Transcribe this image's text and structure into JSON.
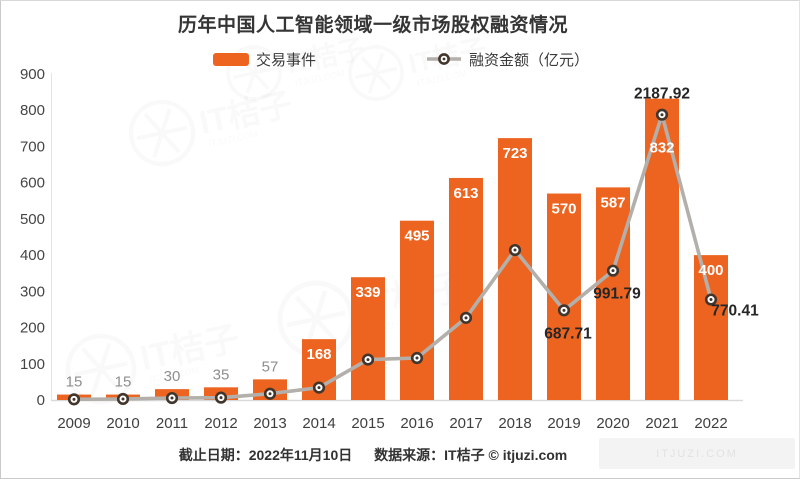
{
  "title": "历年中国人工智能领域一级市场股权融资情况",
  "legend": [
    {
      "label": "交易事件",
      "type": "bar"
    },
    {
      "label": "融资金额（亿元）",
      "type": "line"
    }
  ],
  "footer": {
    "date_label": "截止日期：2022年11月10日",
    "source_label": "数据来源：IT桔子 © itjuzi.com"
  },
  "watermark": {
    "brand": "IT桔子",
    "domain": "ITJUZI.COM"
  },
  "colors": {
    "bar": "#ec6420",
    "bar_label_inside": "#ffffff",
    "bar_label_outside": "#8e8e8e",
    "line": "#b3afaa",
    "marker_ring": "#42352c",
    "marker_fill": "#ffffff",
    "axis_line": "#d9d9d9",
    "tick_text": "#454545",
    "annotation_text": "#262626",
    "watermark_gray": "#9a9a9a"
  },
  "chart_data": {
    "type": "bar",
    "title": "历年中国人工智能领域一级市场股权融资情况",
    "categories": [
      "2009",
      "2010",
      "2011",
      "2012",
      "2013",
      "2014",
      "2015",
      "2016",
      "2017",
      "2018",
      "2019",
      "2020",
      "2021",
      "2022"
    ],
    "series": [
      {
        "name": "交易事件",
        "kind": "bar",
        "axis": "left",
        "values": [
          15,
          15,
          30,
          35,
          57,
          168,
          339,
          495,
          613,
          723,
          570,
          587,
          832,
          400
        ]
      },
      {
        "name": "融资金额（亿元）",
        "kind": "line",
        "axis": "right",
        "values": [
          5,
          8,
          15,
          18,
          48,
          95,
          310,
          322,
          630,
          1150,
          687.71,
          991.79,
          2187.92,
          770.41
        ]
      }
    ],
    "annotations": [
      {
        "category": "2019",
        "text": "687.71",
        "position": "below"
      },
      {
        "category": "2020",
        "text": "991.79",
        "position": "below"
      },
      {
        "category": "2021",
        "text": "2187.92",
        "position": "above"
      },
      {
        "category": "2022",
        "text": "770.41",
        "position": "below-right"
      }
    ],
    "yticks_left": [
      0,
      100,
      200,
      300,
      400,
      500,
      600,
      700,
      800,
      900
    ],
    "ylim_left": [
      0,
      900
    ],
    "ylim_right": [
      0,
      2500
    ],
    "grid": false,
    "legend_position": "top",
    "xlabel": "",
    "ylabel": ""
  }
}
